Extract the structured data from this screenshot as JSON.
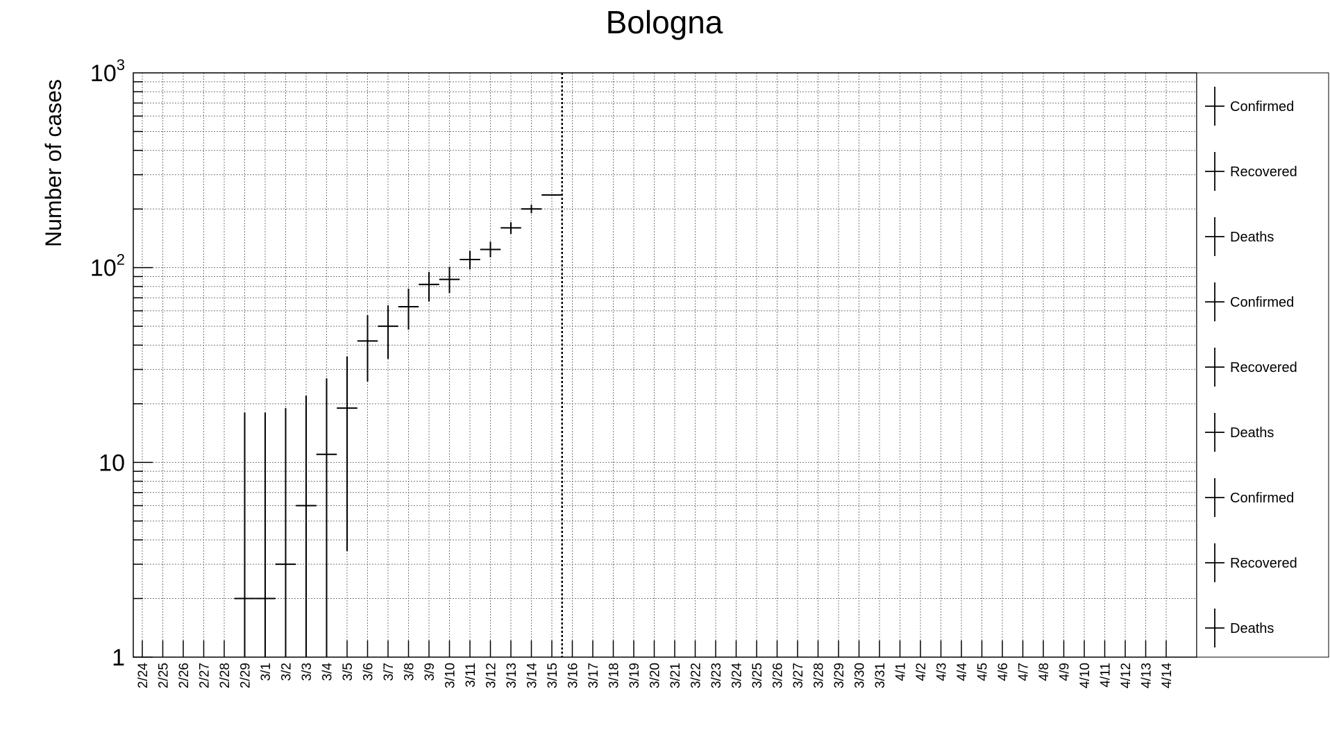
{
  "chart_data": {
    "type": "scatter",
    "title": "Bologna",
    "xlabel": "",
    "ylabel": "Number of cases",
    "y_scale": "log",
    "ylim": [
      1,
      1000
    ],
    "y_ticks": [
      {
        "value": 1,
        "base": "1",
        "exp": ""
      },
      {
        "value": 10,
        "base": "10",
        "exp": ""
      },
      {
        "value": 100,
        "base": "10",
        "exp": "2"
      },
      {
        "value": 1000,
        "base": "10",
        "exp": "3"
      }
    ],
    "grid": true,
    "legend_position": "right",
    "categories": [
      "2/24",
      "2/25",
      "2/26",
      "2/27",
      "2/28",
      "2/29",
      "3/1",
      "3/2",
      "3/3",
      "3/4",
      "3/5",
      "3/6",
      "3/7",
      "3/8",
      "3/9",
      "3/10",
      "3/11",
      "3/12",
      "3/13",
      "3/14",
      "3/15",
      "3/16",
      "3/17",
      "3/18",
      "3/19",
      "3/20",
      "3/21",
      "3/22",
      "3/23",
      "3/24",
      "3/25",
      "3/26",
      "3/27",
      "3/28",
      "3/29",
      "3/30",
      "3/31",
      "4/1",
      "4/2",
      "4/3",
      "4/4",
      "4/5",
      "4/6",
      "4/7",
      "4/8",
      "4/9",
      "4/10",
      "4/11",
      "4/12",
      "4/13",
      "4/14"
    ],
    "points": [
      {
        "x": "2/29",
        "y": 2,
        "err_low": 1,
        "err_high": 18
      },
      {
        "x": "3/1",
        "y": 2,
        "err_low": 1,
        "err_high": 18
      },
      {
        "x": "3/2",
        "y": 3,
        "err_low": 1,
        "err_high": 19
      },
      {
        "x": "3/3",
        "y": 6,
        "err_low": 1,
        "err_high": 22
      },
      {
        "x": "3/4",
        "y": 11,
        "err_low": 1,
        "err_high": 27
      },
      {
        "x": "3/5",
        "y": 19,
        "err_low": 3.5,
        "err_high": 35
      },
      {
        "x": "3/6",
        "y": 42,
        "err_low": 26,
        "err_high": 57
      },
      {
        "x": "3/7",
        "y": 50,
        "err_low": 34,
        "err_high": 64
      },
      {
        "x": "3/8",
        "y": 63,
        "err_low": 48,
        "err_high": 78
      },
      {
        "x": "3/9",
        "y": 82,
        "err_low": 67,
        "err_high": 95
      },
      {
        "x": "3/10",
        "y": 87,
        "err_low": 74,
        "err_high": 101
      },
      {
        "x": "3/11",
        "y": 110,
        "err_low": 98,
        "err_high": 122
      },
      {
        "x": "3/12",
        "y": 124,
        "err_low": 113,
        "err_high": 136
      },
      {
        "x": "3/13",
        "y": 160,
        "err_low": 149,
        "err_high": 171
      },
      {
        "x": "3/14",
        "y": 200,
        "err_low": 190,
        "err_high": 210
      },
      {
        "x": "3/15",
        "y": 236,
        "err_low": 236,
        "err_high": 236
      }
    ],
    "marker_line_x": "3/16",
    "legend": [
      "Confirmed",
      "Recovered",
      "Deaths",
      "Confirmed",
      "Recovered",
      "Deaths",
      "Confirmed",
      "Recovered",
      "Deaths"
    ]
  }
}
